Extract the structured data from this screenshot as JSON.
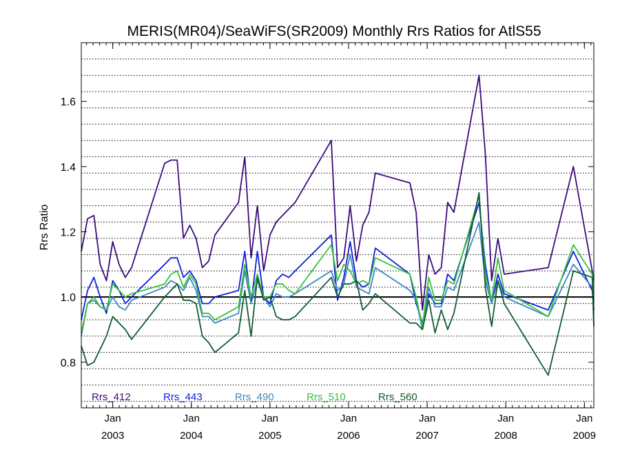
{
  "chart_data": {
    "type": "line",
    "title": "MERIS(MR04)/SeaWiFS(SR2009) Monthly Rrs Ratios for AtlS55",
    "xlabel": "",
    "ylabel": "Rrs Ratio",
    "xlim": [
      2002.6,
      2009.12
    ],
    "ylim": [
      0.66,
      1.78
    ],
    "yticks": [
      {
        "v": 0.8,
        "label": "0.8"
      },
      {
        "v": 1.0,
        "label": "1.0"
      },
      {
        "v": 1.2,
        "label": "1.2"
      },
      {
        "v": 1.4,
        "label": "1.4"
      },
      {
        "v": 1.6,
        "label": "1.6"
      }
    ],
    "xticks": [
      {
        "v": 2003.0,
        "month": "Jan",
        "year": "2003"
      },
      {
        "v": 2004.0,
        "month": "Jan",
        "year": "2004"
      },
      {
        "v": 2005.0,
        "month": "Jan",
        "year": "2005"
      },
      {
        "v": 2006.0,
        "month": "Jan",
        "year": "2006"
      },
      {
        "v": 2007.0,
        "month": "Jan",
        "year": "2007"
      },
      {
        "v": 2008.0,
        "month": "Jan",
        "year": "2008"
      },
      {
        "v": 2009.0,
        "month": "Jan",
        "year": "2009"
      }
    ],
    "reference_line": 1.0,
    "grid": "horizontal dotted",
    "legend_position": "bottom inside plot",
    "x": [
      2002.6,
      2002.68,
      2002.76,
      2002.84,
      2002.92,
      2003.0,
      2003.08,
      2003.16,
      2003.24,
      2003.66,
      2003.74,
      2003.82,
      2003.9,
      2003.98,
      2004.06,
      2004.14,
      2004.22,
      2004.3,
      2004.6,
      2004.68,
      2004.76,
      2004.84,
      2004.92,
      2005.0,
      2005.08,
      2005.16,
      2005.24,
      2005.32,
      2005.78,
      2005.86,
      2005.94,
      2006.02,
      2006.1,
      2006.18,
      2006.26,
      2006.34,
      2006.78,
      2006.86,
      2006.94,
      2007.02,
      2007.1,
      2007.18,
      2007.26,
      2007.34,
      2007.66,
      2007.74,
      2007.82,
      2007.9,
      2007.98,
      2008.54,
      2008.86,
      2009.1,
      2009.12
    ],
    "series": [
      {
        "name": "Rrs_412",
        "color": "#3a0a7a",
        "values": [
          1.14,
          1.24,
          1.25,
          1.1,
          1.05,
          1.17,
          1.1,
          1.06,
          1.09,
          1.41,
          1.42,
          1.42,
          1.18,
          1.22,
          1.18,
          1.09,
          1.11,
          1.19,
          1.29,
          1.43,
          1.12,
          1.28,
          1.08,
          1.19,
          1.23,
          1.25,
          1.27,
          1.29,
          1.48,
          1.09,
          1.12,
          1.28,
          1.11,
          1.22,
          1.26,
          1.38,
          1.35,
          1.26,
          0.96,
          1.13,
          1.07,
          1.09,
          1.29,
          1.26,
          1.68,
          1.44,
          1.05,
          1.18,
          1.07,
          1.09,
          1.4,
          1.08,
          1.05
        ]
      },
      {
        "name": "Rrs_443",
        "color": "#0b1fdc",
        "values": [
          0.93,
          1.02,
          1.06,
          1.0,
          0.95,
          1.05,
          1.02,
          0.98,
          1.0,
          1.1,
          1.12,
          1.12,
          1.06,
          1.08,
          1.05,
          0.98,
          0.98,
          1.0,
          1.02,
          1.14,
          0.98,
          1.14,
          1.0,
          0.98,
          1.05,
          1.07,
          1.06,
          1.08,
          1.19,
          0.99,
          1.06,
          1.17,
          1.05,
          1.03,
          1.04,
          1.15,
          1.07,
          0.98,
          0.92,
          1.01,
          0.98,
          0.98,
          1.07,
          1.05,
          1.29,
          1.1,
          0.98,
          1.07,
          1.01,
          0.96,
          1.14,
          1.02,
          0.96
        ]
      },
      {
        "name": "Rrs_490",
        "color": "#3c86bf",
        "values": [
          0.88,
          0.98,
          0.99,
          0.97,
          0.96,
          1.0,
          0.97,
          0.96,
          0.99,
          1.03,
          1.05,
          1.04,
          1.02,
          1.06,
          1.02,
          0.94,
          0.94,
          0.92,
          0.95,
          1.08,
          0.98,
          1.05,
          1.0,
          0.97,
          1.01,
          1.0,
          1.0,
          1.01,
          1.08,
          1.02,
          1.04,
          1.13,
          1.03,
          1.02,
          1.01,
          1.09,
          1.02,
          0.99,
          0.9,
          1.03,
          0.97,
          0.97,
          1.03,
          1.02,
          1.23,
          1.05,
          0.98,
          1.05,
          1.0,
          0.94,
          1.1,
          1.03,
          0.98
        ]
      },
      {
        "name": "Rrs_510",
        "color": "#35c13a",
        "values": [
          0.89,
          0.98,
          1.0,
          0.97,
          0.96,
          1.04,
          1.02,
          1.0,
          1.01,
          1.04,
          1.07,
          1.08,
          1.03,
          1.07,
          1.04,
          0.95,
          0.95,
          0.93,
          0.97,
          1.1,
          1.0,
          1.07,
          1.0,
          1.0,
          1.04,
          1.04,
          1.02,
          1.01,
          1.16,
          1.05,
          1.1,
          1.08,
          1.04,
          1.05,
          1.04,
          1.12,
          1.07,
          1.0,
          0.91,
          1.06,
          0.99,
          0.99,
          1.05,
          1.04,
          1.31,
          1.07,
          0.99,
          1.12,
          1.02,
          0.94,
          1.16,
          1.07,
          0.99
        ]
      },
      {
        "name": "Rrs_560",
        "color": "#0f5b32",
        "values": [
          0.85,
          0.79,
          0.8,
          0.84,
          0.88,
          0.94,
          0.92,
          0.9,
          0.87,
          1.0,
          1.02,
          1.04,
          0.99,
          0.99,
          0.98,
          0.88,
          0.86,
          0.83,
          0.89,
          1.02,
          0.88,
          1.06,
          0.99,
          1.0,
          0.94,
          0.93,
          0.93,
          0.94,
          1.06,
          1.0,
          1.04,
          1.04,
          1.05,
          0.96,
          0.98,
          1.01,
          0.92,
          0.92,
          0.9,
          0.99,
          0.89,
          0.96,
          0.9,
          0.95,
          1.32,
          1.03,
          0.91,
          1.05,
          0.98,
          0.76,
          1.08,
          1.06,
          0.91
        ]
      }
    ]
  }
}
